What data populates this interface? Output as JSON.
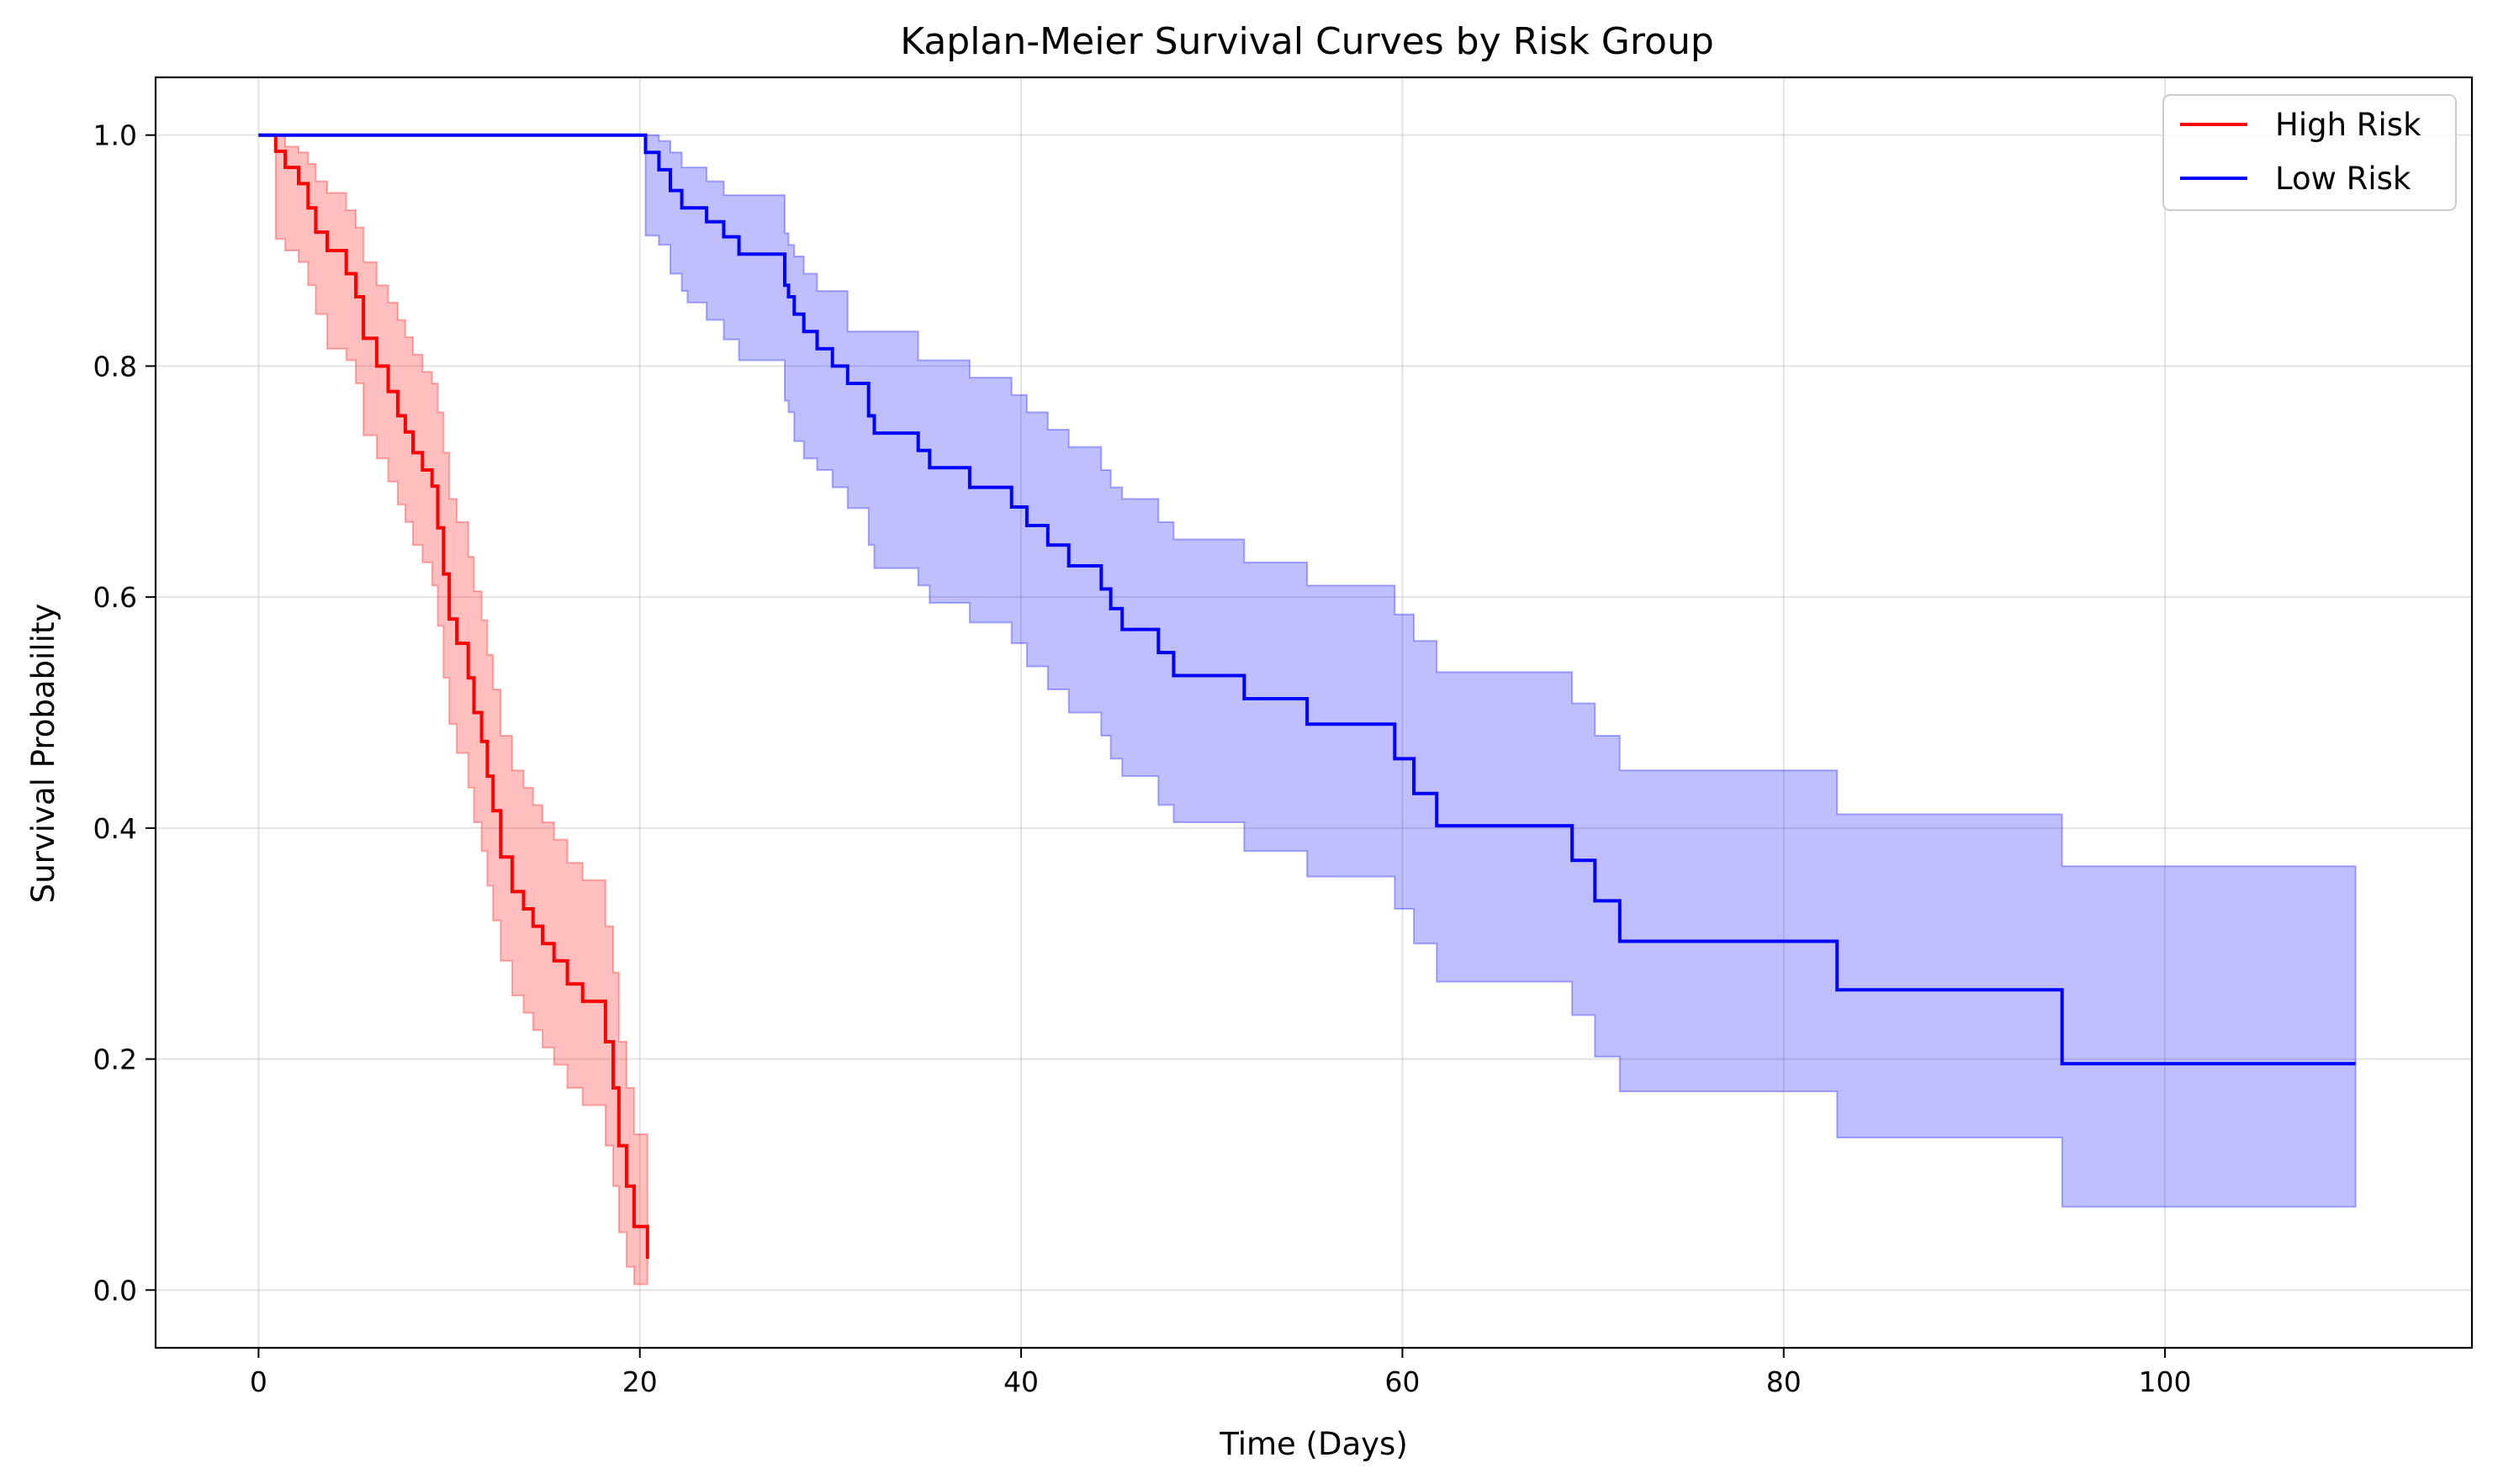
{
  "chart_data": {
    "type": "line",
    "title": "Kaplan-Meier Survival Curves by Risk Group",
    "xlabel": "Time (Days)",
    "ylabel": "Survival Probability",
    "xlim": [
      -5.4,
      116.1
    ],
    "ylim": [
      -0.05,
      1.05
    ],
    "xticks": [
      0,
      20,
      40,
      60,
      80,
      100
    ],
    "yticks": [
      0.0,
      0.2,
      0.4,
      0.6,
      0.8,
      1.0
    ],
    "xtick_labels": [
      "0",
      "20",
      "40",
      "60",
      "80",
      "100"
    ],
    "ytick_labels": [
      "0.0",
      "0.2",
      "0.4",
      "0.6",
      "0.8",
      "1.0"
    ],
    "grid": true,
    "legend_position": "top-right",
    "series": [
      {
        "name": "High Risk",
        "color": "#ff0000",
        "band_color": "#ff0000",
        "x": [
          0,
          0.9,
          1.4,
          2.1,
          2.6,
          3.0,
          3.6,
          4.6,
          5.1,
          5.5,
          6.2,
          6.8,
          7.3,
          7.7,
          8.1,
          8.6,
          9.1,
          9.4,
          9.7,
          10.0,
          10.4,
          11.0,
          11.3,
          11.7,
          12.0,
          12.3,
          12.7,
          13.3,
          13.9,
          14.4,
          14.9,
          15.5,
          16.2,
          17.0,
          18.2,
          18.6,
          18.9,
          19.3,
          19.7,
          20.4
        ],
        "y": [
          1.0,
          0.986,
          0.972,
          0.958,
          0.937,
          0.916,
          0.9,
          0.88,
          0.86,
          0.824,
          0.8,
          0.778,
          0.757,
          0.743,
          0.725,
          0.71,
          0.696,
          0.66,
          0.62,
          0.581,
          0.56,
          0.53,
          0.5,
          0.475,
          0.445,
          0.415,
          0.375,
          0.345,
          0.33,
          0.315,
          0.3,
          0.285,
          0.265,
          0.25,
          0.215,
          0.175,
          0.125,
          0.09,
          0.055,
          0.027
        ],
        "upper": [
          1.0,
          1.0,
          0.99,
          0.985,
          0.975,
          0.96,
          0.95,
          0.935,
          0.92,
          0.89,
          0.87,
          0.855,
          0.84,
          0.825,
          0.81,
          0.795,
          0.785,
          0.76,
          0.725,
          0.685,
          0.665,
          0.635,
          0.605,
          0.58,
          0.55,
          0.52,
          0.48,
          0.45,
          0.435,
          0.42,
          0.405,
          0.39,
          0.37,
          0.355,
          0.315,
          0.275,
          0.215,
          0.175,
          0.135,
          0.108
        ],
        "lower": [
          1.0,
          0.91,
          0.9,
          0.89,
          0.87,
          0.845,
          0.815,
          0.805,
          0.785,
          0.74,
          0.72,
          0.7,
          0.68,
          0.665,
          0.645,
          0.63,
          0.61,
          0.575,
          0.53,
          0.49,
          0.465,
          0.435,
          0.405,
          0.38,
          0.35,
          0.32,
          0.285,
          0.255,
          0.24,
          0.225,
          0.21,
          0.195,
          0.175,
          0.16,
          0.125,
          0.09,
          0.05,
          0.02,
          0.005,
          0.005
        ]
      },
      {
        "name": "Low Risk",
        "color": "#0000ff",
        "band_color": "#0000ff",
        "x": [
          0,
          20.3,
          21.0,
          21.6,
          22.2,
          22.5,
          23.5,
          24.4,
          25.2,
          27.6,
          27.8,
          28.1,
          28.6,
          29.3,
          30.1,
          30.9,
          32.0,
          32.3,
          34.6,
          35.2,
          37.3,
          39.5,
          40.3,
          41.4,
          42.5,
          44.2,
          44.7,
          45.3,
          47.2,
          48.0,
          51.7,
          55.0,
          59.6,
          60.6,
          61.8,
          68.9,
          70.1,
          71.4,
          82.8,
          94.6,
          110.0
        ],
        "y": [
          1.0,
          0.985,
          0.97,
          0.952,
          0.937,
          0.937,
          0.925,
          0.912,
          0.897,
          0.87,
          0.86,
          0.845,
          0.83,
          0.815,
          0.8,
          0.785,
          0.757,
          0.742,
          0.727,
          0.712,
          0.695,
          0.678,
          0.662,
          0.645,
          0.627,
          0.607,
          0.59,
          0.572,
          0.552,
          0.532,
          0.512,
          0.49,
          0.46,
          0.43,
          0.402,
          0.372,
          0.337,
          0.302,
          0.26,
          0.196,
          0.196
        ],
        "upper": [
          1.0,
          1.0,
          0.995,
          0.985,
          0.972,
          0.972,
          0.96,
          0.948,
          0.948,
          0.915,
          0.905,
          0.895,
          0.88,
          0.865,
          0.865,
          0.83,
          0.83,
          0.83,
          0.805,
          0.805,
          0.79,
          0.775,
          0.76,
          0.745,
          0.73,
          0.71,
          0.695,
          0.685,
          0.665,
          0.65,
          0.63,
          0.61,
          0.585,
          0.562,
          0.535,
          0.508,
          0.48,
          0.45,
          0.412,
          0.367,
          0.367
        ],
        "lower": [
          1.0,
          0.913,
          0.905,
          0.88,
          0.865,
          0.855,
          0.84,
          0.823,
          0.805,
          0.77,
          0.76,
          0.735,
          0.72,
          0.71,
          0.695,
          0.677,
          0.645,
          0.625,
          0.61,
          0.595,
          0.578,
          0.56,
          0.54,
          0.52,
          0.5,
          0.48,
          0.46,
          0.445,
          0.42,
          0.405,
          0.38,
          0.358,
          0.33,
          0.3,
          0.267,
          0.238,
          0.202,
          0.172,
          0.132,
          0.072,
          0.072
        ]
      }
    ]
  }
}
